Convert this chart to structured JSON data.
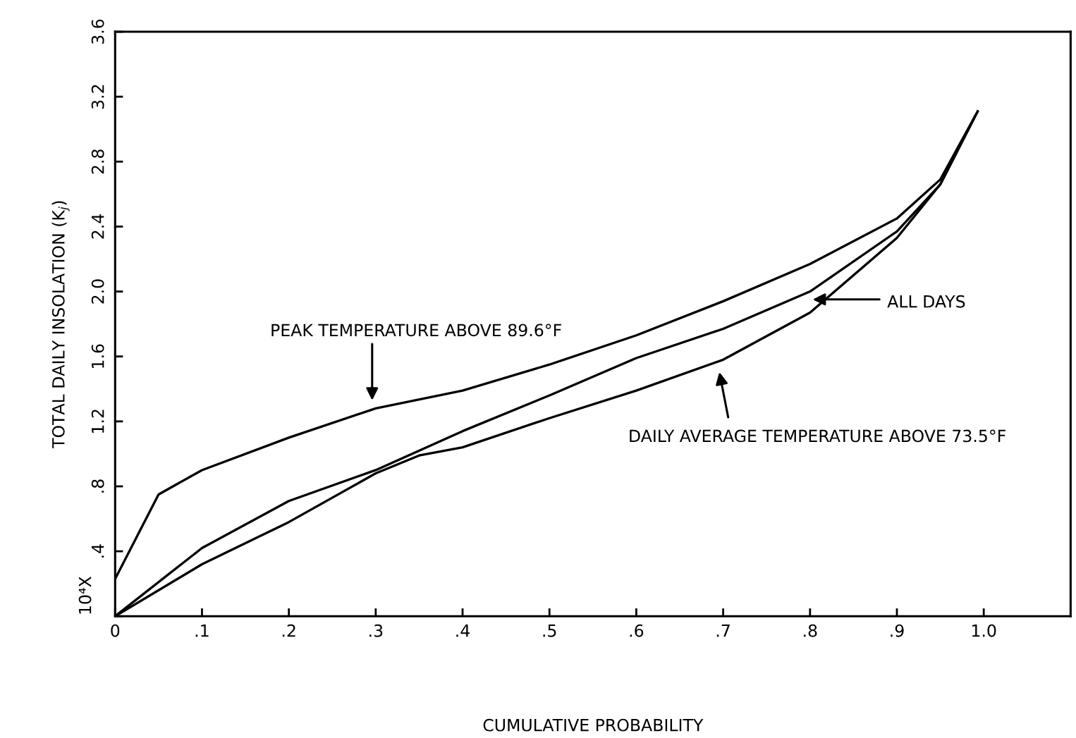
{
  "chart_data": {
    "type": "line",
    "xlabel": "CUMULATIVE PROBABILITY",
    "ylabel": "TOTAL DAILY INSOLATION (K$_{j}$)",
    "xlim": [
      0,
      1.1
    ],
    "xticks": [
      0,
      {
        "value": 0.1,
        "label": ".1"
      },
      {
        "value": 0.2,
        "label": ".2"
      },
      {
        "value": 0.3,
        "label": ".3"
      },
      {
        "value": 0.4,
        "label": ".4"
      },
      {
        "value": 0.5,
        "label": ".5"
      },
      {
        "value": 0.6,
        "label": ".6"
      },
      {
        "value": 0.7,
        "label": ".7"
      },
      {
        "value": 0.8,
        "label": ".8"
      },
      {
        "value": 0.9,
        "label": ".9"
      },
      {
        "value": 1.0,
        "label": "1.0"
      }
    ],
    "ylim": [
      0,
      3.6
    ],
    "yticks": [
      {
        "value": 0,
        "label": null
      },
      {
        "value": 0.4,
        "label": ".4"
      },
      {
        "value": 0.8,
        "label": ".8"
      },
      1.2,
      1.6,
      {
        "value": 2.0,
        "label": "2.0"
      },
      2.4,
      2.8,
      3.2,
      3.6
    ],
    "grid": false,
    "marker": "none",
    "line_style": "solid",
    "series": [
      {
        "color": "#000000",
        "x": [
          0,
          0.05,
          0.1,
          0.2,
          0.3,
          0.4,
          0.5,
          0.6,
          0.7,
          0.8,
          0.9,
          0.95,
          0.993
        ],
        "values": [
          0.23,
          0.75,
          0.9,
          1.1,
          1.28,
          1.39,
          1.55,
          1.73,
          1.94,
          2.17,
          2.45,
          2.69,
          3.11
        ]
      },
      {
        "color": "#000000",
        "x": [
          0,
          0.1,
          0.2,
          0.3,
          0.4,
          0.5,
          0.6,
          0.7,
          0.8,
          0.9,
          0.95,
          0.99
        ],
        "values": [
          0,
          0.42,
          0.71,
          0.9,
          1.14,
          1.36,
          1.59,
          1.77,
          2.0,
          2.37,
          2.66,
          3.08
        ]
      },
      {
        "color": "#000000",
        "x": [
          0,
          0.1,
          0.2,
          0.3,
          0.35,
          0.4,
          0.5,
          0.6,
          0.7,
          0.8,
          0.9,
          0.95,
          0.993
        ],
        "values": [
          0,
          0.32,
          0.58,
          0.88,
          0.99,
          1.04,
          1.22,
          1.39,
          1.58,
          1.87,
          2.33,
          2.66,
          3.11
        ]
      }
    ],
    "annotations": [
      "PEAK TEMPERATURE ABOVE 89.6°F",
      "ALL DAYS",
      "DAILY AVERAGE TEMPERATURE ABOVE 73.5°F",
      "10⁴X"
    ]
  }
}
